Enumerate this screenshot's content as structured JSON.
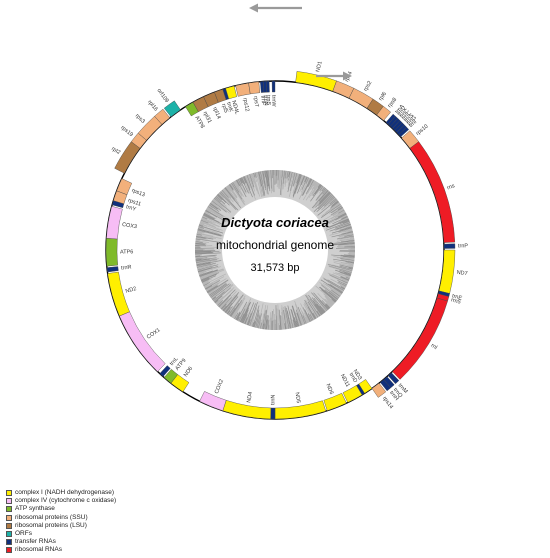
{
  "title": {
    "species": "Dictyota coriacea",
    "subtitle": "mitochondrial genome",
    "size": "31,573 bp"
  },
  "legend": [
    {
      "label": "complex I (NADH dehydrogenase)",
      "color": "#ffef00"
    },
    {
      "label": "complex IV (cytochrome c oxidase)",
      "color": "#f7bdf5"
    },
    {
      "label": "ATP synthase",
      "color": "#7fba2a"
    },
    {
      "label": "ribosomal proteins (SSU)",
      "color": "#f2b07b"
    },
    {
      "label": "ribosomal proteins (LSU)",
      "color": "#b07b44"
    },
    {
      "label": "ORFs",
      "color": "#1db2a8"
    },
    {
      "label": "transfer RNAs",
      "color": "#10307c"
    },
    {
      "label": "ribosomal RNAs",
      "color": "#ee1c25"
    }
  ],
  "genes": [
    {
      "name": "ND1",
      "start": 7,
      "end": 20,
      "cat": "complex1",
      "side": "out"
    },
    {
      "name": "rps4",
      "start": 20,
      "end": 26,
      "cat": "ssu",
      "side": "out"
    },
    {
      "name": "rps2",
      "start": 26,
      "end": 33,
      "cat": "ssu",
      "side": "out"
    },
    {
      "name": "rpl6",
      "start": 33,
      "end": 37,
      "cat": "lsu",
      "side": "out"
    },
    {
      "name": "rps8",
      "start": 37,
      "end": 40,
      "cat": "ssu",
      "side": "out"
    },
    {
      "name": "trnA",
      "start": 41,
      "end": 42,
      "cat": "trna",
      "side": "out"
    },
    {
      "name": "trnV",
      "start": 42,
      "end": 43,
      "cat": "trna",
      "side": "out"
    },
    {
      "name": "trnC",
      "start": 43,
      "end": 44,
      "cat": "trna",
      "side": "out"
    },
    {
      "name": "trnL",
      "start": 44,
      "end": 45,
      "cat": "trna",
      "side": "out"
    },
    {
      "name": "trnS",
      "start": 45,
      "end": 46,
      "cat": "trna",
      "side": "out"
    },
    {
      "name": "trnG",
      "start": 46,
      "end": 47,
      "cat": "trna",
      "side": "out"
    },
    {
      "name": "trnI",
      "start": 47,
      "end": 48,
      "cat": "trna",
      "side": "out"
    },
    {
      "name": "rps10",
      "start": 48.5,
      "end": 53,
      "cat": "ssu",
      "side": "out"
    },
    {
      "name": "rns",
      "start": 53,
      "end": 87.5,
      "cat": "rrna",
      "side": "out"
    },
    {
      "name": "trnP",
      "start": 88,
      "end": 89.5,
      "cat": "trna",
      "side": "out"
    },
    {
      "name": "ND7",
      "start": 90,
      "end": 104,
      "cat": "complex1",
      "side": "out"
    },
    {
      "name": "trnE",
      "start": 104,
      "end": 105,
      "cat": "trna",
      "side": "out"
    },
    {
      "name": "rrn5",
      "start": 105,
      "end": 106.5,
      "cat": "rrna",
      "side": "out"
    },
    {
      "name": "rnl",
      "start": 106.5,
      "end": 136,
      "cat": "rrna",
      "side": "out"
    },
    {
      "name": "trnM",
      "start": 136.5,
      "end": 138,
      "cat": "trna",
      "side": "out"
    },
    {
      "name": "trnQ",
      "start": 138.5,
      "end": 140,
      "cat": "trna",
      "side": "out"
    },
    {
      "name": "trnH",
      "start": 140,
      "end": 141.5,
      "cat": "trna",
      "side": "out"
    },
    {
      "name": "rps14",
      "start": 142,
      "end": 145,
      "cat": "ssu",
      "side": "out"
    },
    {
      "name": "ND3",
      "start": 145,
      "end": 148,
      "cat": "complex1",
      "side": "in"
    },
    {
      "name": "trnD",
      "start": 148,
      "end": 149,
      "cat": "trna",
      "side": "in"
    },
    {
      "name": "ND11",
      "start": 149,
      "end": 154.5,
      "cat": "complex1",
      "side": "in"
    },
    {
      "name": "ND6",
      "start": 155,
      "end": 162,
      "cat": "complex1",
      "side": "in"
    },
    {
      "name": "ND5",
      "start": 162.5,
      "end": 180,
      "cat": "complex1",
      "side": "in"
    },
    {
      "name": "trnN",
      "start": 180,
      "end": 181.5,
      "cat": "trna",
      "side": "in"
    },
    {
      "name": "ND4",
      "start": 181.5,
      "end": 198,
      "cat": "complex1",
      "side": "in"
    },
    {
      "name": "COX2",
      "start": 198,
      "end": 206.5,
      "cat": "cox",
      "side": "in"
    },
    {
      "name": "ND6",
      "start": 213,
      "end": 218,
      "cat": "complex1",
      "side": "in"
    },
    {
      "name": "ATP9",
      "start": 218,
      "end": 221,
      "cat": "atp",
      "side": "in"
    },
    {
      "name": "trnL",
      "start": 221.5,
      "end": 223,
      "cat": "trna",
      "side": "in"
    },
    {
      "name": "COX1",
      "start": 224,
      "end": 247,
      "cat": "cox",
      "side": "in"
    },
    {
      "name": "ND2",
      "start": 247,
      "end": 262,
      "cat": "complex1",
      "side": "in"
    },
    {
      "name": "trnR",
      "start": 262.5,
      "end": 264,
      "cat": "trna",
      "side": "in"
    },
    {
      "name": "ATP6",
      "start": 264.5,
      "end": 274,
      "cat": "atp",
      "side": "in"
    },
    {
      "name": "COX3",
      "start": 274,
      "end": 285,
      "cat": "cox",
      "side": "in"
    },
    {
      "name": "trnY",
      "start": 285.5,
      "end": 287,
      "cat": "trna",
      "side": "in"
    },
    {
      "name": "rps11",
      "start": 287,
      "end": 290.5,
      "cat": "ssu",
      "side": "in"
    },
    {
      "name": "rps13",
      "start": 290.5,
      "end": 295,
      "cat": "ssu",
      "side": "in"
    },
    {
      "name": "rpl2",
      "start": 297,
      "end": 307,
      "cat": "lsu",
      "side": "out"
    },
    {
      "name": "rps19",
      "start": 307,
      "end": 310.5,
      "cat": "ssu",
      "side": "out"
    },
    {
      "name": "rps3",
      "start": 310.5,
      "end": 318,
      "cat": "ssu",
      "side": "out"
    },
    {
      "name": "rpl16",
      "start": 318,
      "end": 321.5,
      "cat": "ssu",
      "side": "out"
    },
    {
      "name": "orf109",
      "start": 322,
      "end": 326,
      "cat": "orf",
      "side": "out"
    },
    {
      "name": "ATP8",
      "start": 328,
      "end": 331,
      "cat": "atp",
      "side": "in"
    },
    {
      "name": "rpl31",
      "start": 331,
      "end": 335,
      "cat": "lsu",
      "side": "in"
    },
    {
      "name": "rpl14",
      "start": 335,
      "end": 339,
      "cat": "lsu",
      "side": "in"
    },
    {
      "name": "rpl5",
      "start": 339,
      "end": 342,
      "cat": "lsu",
      "side": "in"
    },
    {
      "name": "trnK",
      "start": 342,
      "end": 343,
      "cat": "trna",
      "side": "in"
    },
    {
      "name": "ND4L",
      "start": 343,
      "end": 346,
      "cat": "complex1",
      "side": "in"
    },
    {
      "name": "rps12",
      "start": 346.5,
      "end": 351,
      "cat": "ssu",
      "side": "in"
    },
    {
      "name": "rps7",
      "start": 351,
      "end": 354.5,
      "cat": "ssu",
      "side": "in"
    },
    {
      "name": "trnF",
      "start": 355,
      "end": 356,
      "cat": "trna",
      "side": "in"
    },
    {
      "name": "trnN",
      "start": 356,
      "end": 357,
      "cat": "trna",
      "side": "in"
    },
    {
      "name": "trnS",
      "start": 357,
      "end": 358,
      "cat": "trna",
      "side": "in"
    },
    {
      "name": "trnW",
      "start": 359,
      "end": 360,
      "cat": "trna",
      "side": "in"
    }
  ],
  "colors": {
    "complex1": "#ffef00",
    "cox": "#f7bdf5",
    "atp": "#7fba2a",
    "ssu": "#f2b07b",
    "lsu": "#b07b44",
    "orf": "#1db2a8",
    "trna": "#10307c",
    "rrna": "#ee1c25"
  }
}
